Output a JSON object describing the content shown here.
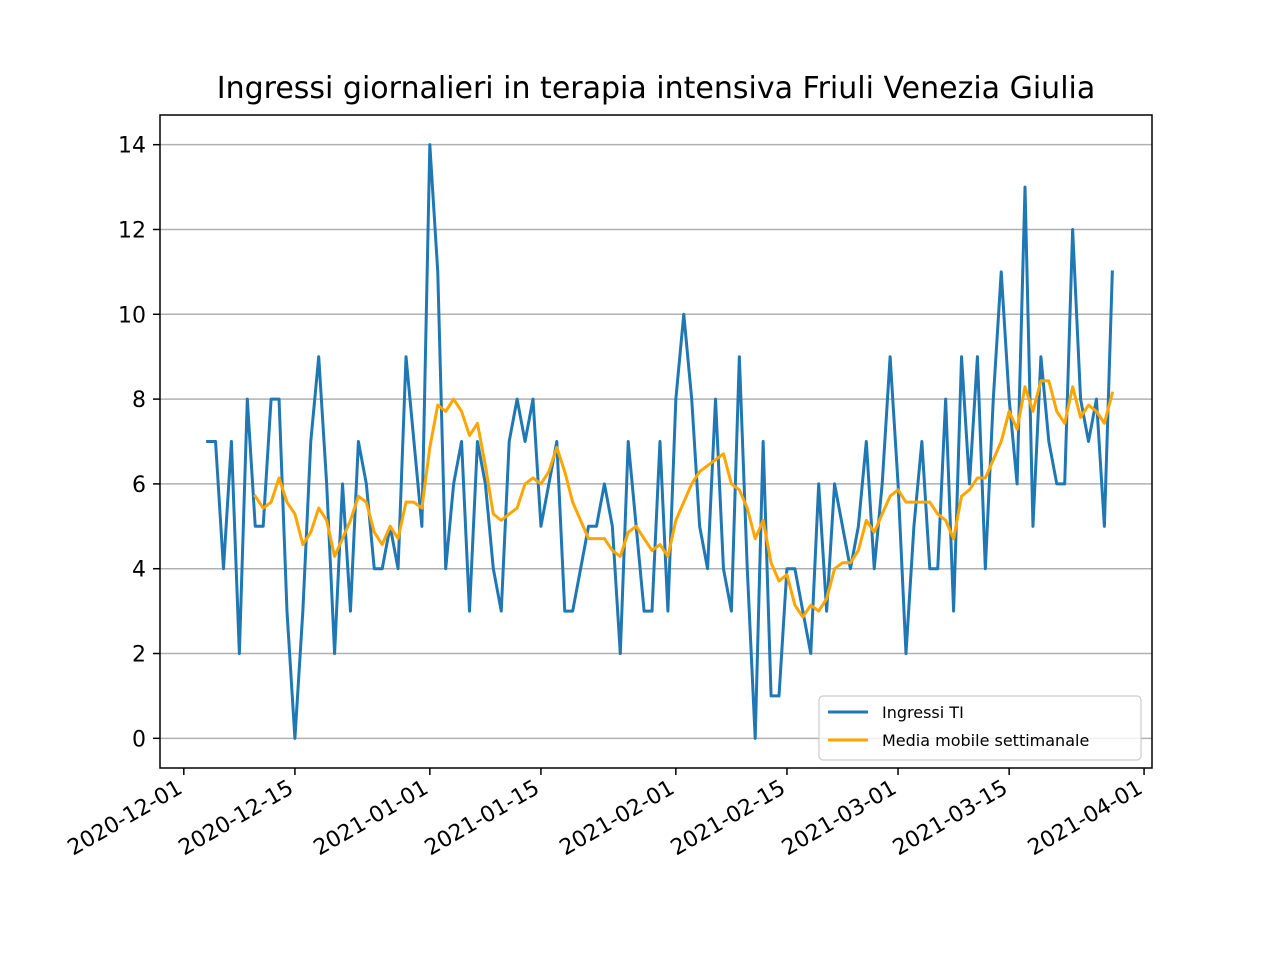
{
  "chart_data": {
    "type": "line",
    "title": "Ingressi giornalieri in terapia intensiva Friuli Venezia Giulia",
    "xlabel": "",
    "ylabel": "",
    "xlim": [
      "2020-11-28",
      "2021-04-02"
    ],
    "ylim": [
      -0.7,
      14.7
    ],
    "x_ticks": [
      "2020-12-01",
      "2020-12-15",
      "2021-01-01",
      "2021-01-15",
      "2021-02-01",
      "2021-02-15",
      "2021-03-01",
      "2021-03-15",
      "2021-04-01"
    ],
    "y_ticks": [
      0,
      2,
      4,
      6,
      8,
      10,
      12,
      14
    ],
    "grid": "horizontal",
    "legend_position": "lower-right",
    "x_start": "2020-12-04",
    "series": [
      {
        "name": "Ingressi TI",
        "color": "#1f77b4",
        "values": [
          7,
          7,
          4,
          7,
          2,
          8,
          5,
          5,
          8,
          8,
          3,
          0,
          3,
          7,
          9,
          6,
          2,
          6,
          3,
          7,
          6,
          4,
          4,
          5,
          4,
          9,
          7,
          5,
          14,
          11,
          4,
          6,
          7,
          3,
          7,
          6,
          4,
          3,
          7,
          8,
          7,
          8,
          5,
          6,
          7,
          3,
          3,
          4,
          5,
          5,
          6,
          5,
          2,
          7,
          5,
          3,
          3,
          7,
          3,
          8,
          10,
          8,
          5,
          4,
          8,
          4,
          3,
          9,
          4,
          0,
          7,
          1,
          1,
          4,
          4,
          3,
          2,
          6,
          3,
          6,
          5,
          4,
          5,
          7,
          4,
          6,
          9,
          6,
          2,
          5,
          7,
          4,
          4,
          8,
          3,
          9,
          6,
          9,
          4,
          8,
          11,
          8,
          6,
          13,
          5,
          9,
          7,
          6,
          6,
          12,
          8,
          7,
          8,
          5,
          11
        ]
      },
      {
        "name": "Media mobile settimanale",
        "color": "#ffa500",
        "values": [
          null,
          null,
          null,
          null,
          null,
          null,
          5.71,
          5.43,
          5.57,
          6.14,
          5.57,
          5.29,
          4.57,
          4.86,
          5.43,
          5.14,
          4.29,
          4.71,
          5.14,
          5.71,
          5.57,
          4.86,
          4.57,
          5.0,
          4.71,
          5.57,
          5.57,
          5.43,
          6.86,
          7.86,
          7.71,
          8.0,
          7.71,
          7.14,
          7.43,
          6.43,
          5.29,
          5.14,
          5.29,
          5.43,
          6.0,
          6.14,
          6.0,
          6.29,
          6.86,
          6.29,
          5.57,
          5.14,
          4.71,
          4.71,
          4.71,
          4.43,
          4.29,
          4.86,
          5.0,
          4.71,
          4.43,
          4.57,
          4.29,
          5.14,
          5.57,
          6.0,
          6.29,
          6.43,
          6.57,
          6.71,
          6.0,
          5.86,
          5.43,
          4.71,
          5.14,
          4.14,
          3.71,
          3.86,
          3.14,
          2.86,
          3.14,
          3.0,
          3.29,
          4.0,
          4.14,
          4.14,
          4.43,
          5.14,
          4.86,
          5.29,
          5.71,
          5.86,
          5.57,
          5.57,
          5.57,
          5.57,
          5.29,
          5.14,
          4.71,
          5.71,
          5.86,
          6.14,
          6.14,
          6.57,
          7.0,
          7.71,
          7.29,
          8.29,
          7.71,
          8.43,
          8.43,
          7.71,
          7.43,
          8.29,
          7.57,
          7.86,
          7.71,
          7.43,
          8.14
        ]
      }
    ]
  }
}
